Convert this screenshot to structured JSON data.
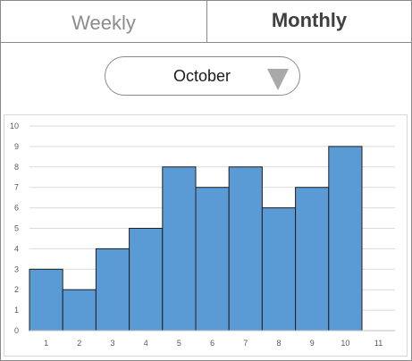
{
  "tabs": {
    "weekly_label": "Weekly",
    "monthly_label": "Monthly",
    "active": "Monthly"
  },
  "month_select": {
    "value": "October",
    "icon": "triangle-down-icon"
  },
  "colors": {
    "bar_fill": "#5b9bd5",
    "bar_stroke": "#1f1f1f",
    "gridline": "#d9d9d9",
    "inactive_tab_text": "#8c8c8c",
    "active_tab_text": "#404040"
  },
  "chart_data": {
    "type": "bar",
    "x": [
      1,
      2,
      3,
      4,
      5,
      6,
      7,
      8,
      9,
      10
    ],
    "values": [
      3,
      2,
      4,
      5,
      8,
      7,
      8,
      6,
      7,
      9
    ],
    "x_tick_labels": [
      "1",
      "2",
      "3",
      "4",
      "5",
      "6",
      "7",
      "8",
      "9",
      "10",
      "11"
    ],
    "y_tick_labels": [
      "0",
      "1",
      "2",
      "3",
      "4",
      "5",
      "6",
      "7",
      "8",
      "9",
      "10"
    ],
    "ylim": [
      0,
      10
    ],
    "grid": true,
    "legend": "none",
    "title": "",
    "xlabel": "",
    "ylabel": ""
  }
}
